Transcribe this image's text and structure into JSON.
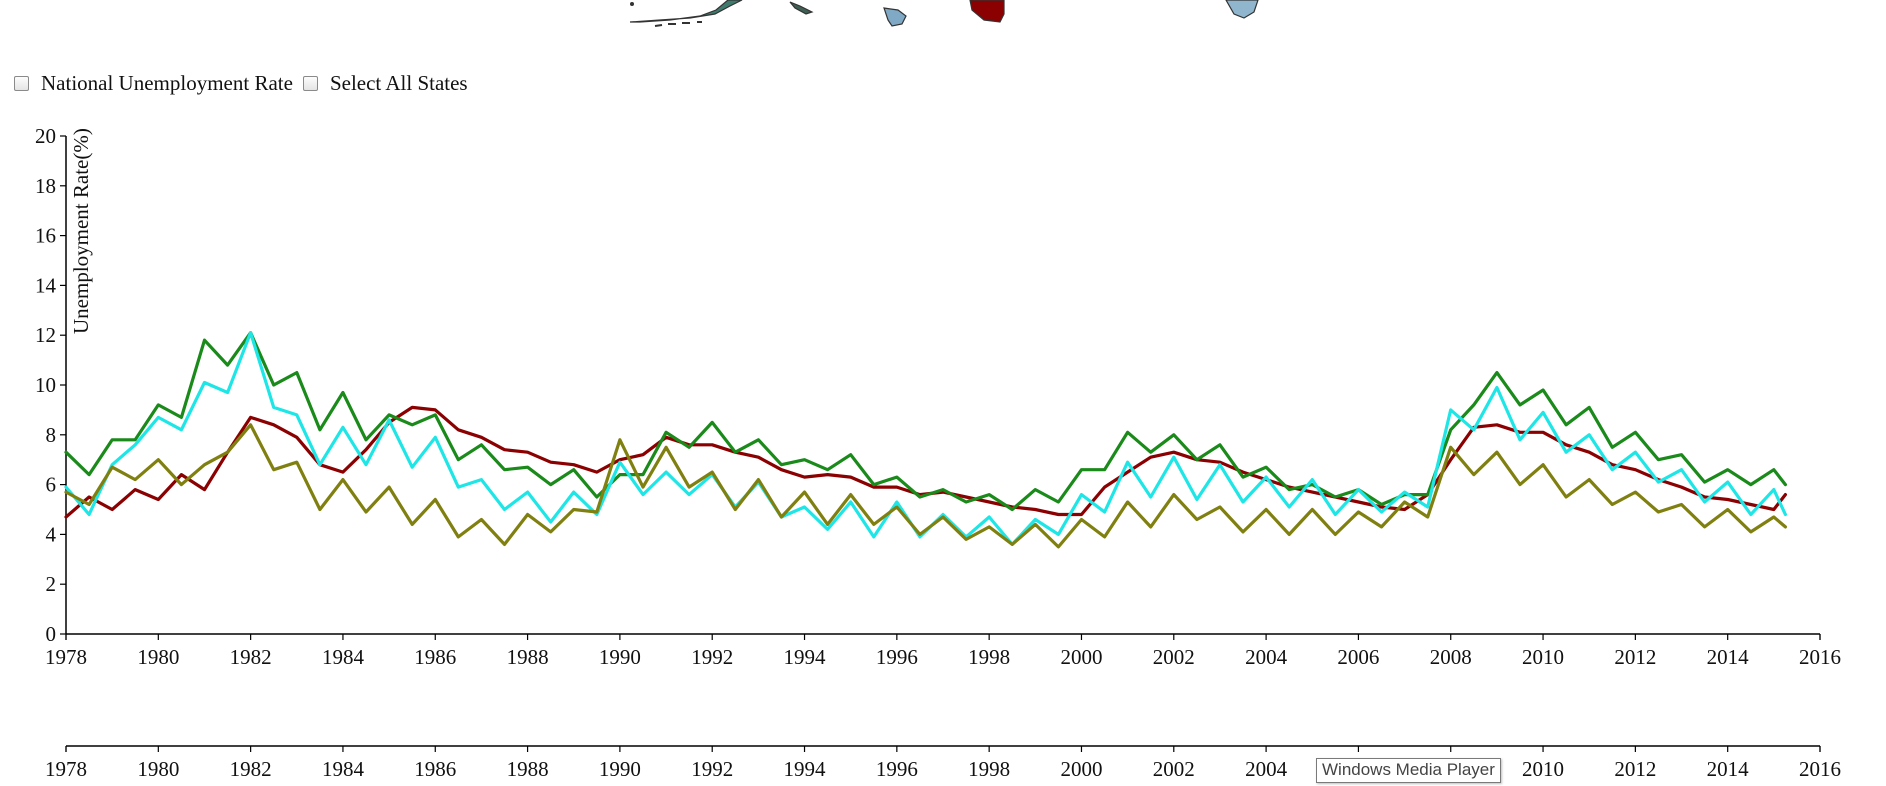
{
  "controls": {
    "national_label": "National Unemployment Rate",
    "all_states_label": "Select All States"
  },
  "tooltip": "Windows Media Player",
  "map_fragment_colors": [
    "#2f6e64",
    "#4a6e9a",
    "#8b0000",
    "#7fa9c4",
    "#3a3a3a"
  ],
  "chart_data": {
    "type": "line",
    "ylabel": "Unemployment Rate(%)",
    "xlabel": "",
    "xlim": [
      1978,
      2016
    ],
    "ylim": [
      0,
      20
    ],
    "y_ticks": [
      "0",
      "2",
      "4",
      "6",
      "8",
      "10",
      "12",
      "14",
      "16",
      "18",
      "20"
    ],
    "x_ticks": [
      "1978",
      "1980",
      "1982",
      "1984",
      "1986",
      "1988",
      "1990",
      "1992",
      "1994",
      "1996",
      "1998",
      "2000",
      "2002",
      "2004",
      "2006",
      "2008",
      "2010",
      "2012",
      "2014",
      "2016"
    ],
    "grid": false,
    "legend": "none",
    "series": [
      {
        "color": "#8b0000",
        "points": [
          [
            1978,
            4.7
          ],
          [
            1978.5,
            5.5
          ],
          [
            1979,
            5.0
          ],
          [
            1979.5,
            5.8
          ],
          [
            1980,
            5.4
          ],
          [
            1980.5,
            6.4
          ],
          [
            1981,
            5.8
          ],
          [
            1981.5,
            7.3
          ],
          [
            1982,
            8.7
          ],
          [
            1982.5,
            8.4
          ],
          [
            1983,
            7.9
          ],
          [
            1983.5,
            6.8
          ],
          [
            1984,
            6.5
          ],
          [
            1984.5,
            7.4
          ],
          [
            1985,
            8.5
          ],
          [
            1985.5,
            9.1
          ],
          [
            1986,
            9.0
          ],
          [
            1986.5,
            8.2
          ],
          [
            1987,
            7.9
          ],
          [
            1987.5,
            7.4
          ],
          [
            1988,
            7.3
          ],
          [
            1988.5,
            6.9
          ],
          [
            1989,
            6.8
          ],
          [
            1989.5,
            6.5
          ],
          [
            1990,
            7.0
          ],
          [
            1990.5,
            7.2
          ],
          [
            1991,
            7.9
          ],
          [
            1991.5,
            7.6
          ],
          [
            1992,
            7.6
          ],
          [
            1992.5,
            7.3
          ],
          [
            1993,
            7.1
          ],
          [
            1993.5,
            6.6
          ],
          [
            1994,
            6.3
          ],
          [
            1994.5,
            6.4
          ],
          [
            1995,
            6.3
          ],
          [
            1995.5,
            5.9
          ],
          [
            1996,
            5.9
          ],
          [
            1996.5,
            5.6
          ],
          [
            1997,
            5.7
          ],
          [
            1997.5,
            5.5
          ],
          [
            1998,
            5.3
          ],
          [
            1998.5,
            5.1
          ],
          [
            1999,
            5.0
          ],
          [
            1999.5,
            4.8
          ],
          [
            2000,
            4.8
          ],
          [
            2000.5,
            5.9
          ],
          [
            2001,
            6.5
          ],
          [
            2001.5,
            7.1
          ],
          [
            2002,
            7.3
          ],
          [
            2002.5,
            7.0
          ],
          [
            2003,
            6.9
          ],
          [
            2003.5,
            6.5
          ],
          [
            2004,
            6.2
          ],
          [
            2004.5,
            5.9
          ],
          [
            2005,
            5.7
          ],
          [
            2005.5,
            5.5
          ],
          [
            2006,
            5.3
          ],
          [
            2006.5,
            5.1
          ],
          [
            2007,
            5.0
          ],
          [
            2007.5,
            5.6
          ],
          [
            2008,
            7.0
          ],
          [
            2008.5,
            8.3
          ],
          [
            2009,
            8.4
          ],
          [
            2009.5,
            8.1
          ],
          [
            2010,
            8.1
          ],
          [
            2010.5,
            7.6
          ],
          [
            2011,
            7.3
          ],
          [
            2011.5,
            6.8
          ],
          [
            2012,
            6.6
          ],
          [
            2012.5,
            6.2
          ],
          [
            2013,
            5.9
          ],
          [
            2013.5,
            5.5
          ],
          [
            2014,
            5.4
          ],
          [
            2014.5,
            5.2
          ],
          [
            2015,
            5.0
          ],
          [
            2015.25,
            5.6
          ]
        ]
      },
      {
        "color": "#1a8a1a",
        "points": [
          [
            1978,
            7.3
          ],
          [
            1978.5,
            6.4
          ],
          [
            1979,
            7.8
          ],
          [
            1979.5,
            7.8
          ],
          [
            1980,
            9.2
          ],
          [
            1980.5,
            8.7
          ],
          [
            1981,
            11.8
          ],
          [
            1981.5,
            10.8
          ],
          [
            1982,
            12.1
          ],
          [
            1982.5,
            10.0
          ],
          [
            1983,
            10.5
          ],
          [
            1983.5,
            8.2
          ],
          [
            1984,
            9.7
          ],
          [
            1984.5,
            7.8
          ],
          [
            1985,
            8.8
          ],
          [
            1985.5,
            8.4
          ],
          [
            1986,
            8.8
          ],
          [
            1986.5,
            7.0
          ],
          [
            1987,
            7.6
          ],
          [
            1987.5,
            6.6
          ],
          [
            1988,
            6.7
          ],
          [
            1988.5,
            6.0
          ],
          [
            1989,
            6.6
          ],
          [
            1989.5,
            5.5
          ],
          [
            1990,
            6.4
          ],
          [
            1990.5,
            6.4
          ],
          [
            1991,
            8.1
          ],
          [
            1991.5,
            7.5
          ],
          [
            1992,
            8.5
          ],
          [
            1992.5,
            7.3
          ],
          [
            1993,
            7.8
          ],
          [
            1993.5,
            6.8
          ],
          [
            1994,
            7.0
          ],
          [
            1994.5,
            6.6
          ],
          [
            1995,
            7.2
          ],
          [
            1995.5,
            6.0
          ],
          [
            1996,
            6.3
          ],
          [
            1996.5,
            5.5
          ],
          [
            1997,
            5.8
          ],
          [
            1997.5,
            5.3
          ],
          [
            1998,
            5.6
          ],
          [
            1998.5,
            5.0
          ],
          [
            1999,
            5.8
          ],
          [
            1999.5,
            5.3
          ],
          [
            2000,
            6.6
          ],
          [
            2000.5,
            6.6
          ],
          [
            2001,
            8.1
          ],
          [
            2001.5,
            7.3
          ],
          [
            2002,
            8.0
          ],
          [
            2002.5,
            7.0
          ],
          [
            2003,
            7.6
          ],
          [
            2003.5,
            6.3
          ],
          [
            2004,
            6.7
          ],
          [
            2004.5,
            5.8
          ],
          [
            2005,
            6.0
          ],
          [
            2005.5,
            5.5
          ],
          [
            2006,
            5.8
          ],
          [
            2006.5,
            5.2
          ],
          [
            2007,
            5.6
          ],
          [
            2007.5,
            5.6
          ],
          [
            2008,
            8.2
          ],
          [
            2008.5,
            9.2
          ],
          [
            2009,
            10.5
          ],
          [
            2009.5,
            9.2
          ],
          [
            2010,
            9.8
          ],
          [
            2010.5,
            8.4
          ],
          [
            2011,
            9.1
          ],
          [
            2011.5,
            7.5
          ],
          [
            2012,
            8.1
          ],
          [
            2012.5,
            7.0
          ],
          [
            2013,
            7.2
          ],
          [
            2013.5,
            6.1
          ],
          [
            2014,
            6.6
          ],
          [
            2014.5,
            6.0
          ],
          [
            2015,
            6.6
          ],
          [
            2015.25,
            6.0
          ]
        ]
      },
      {
        "color": "#1ee6e6",
        "points": [
          [
            1978,
            5.9
          ],
          [
            1978.5,
            4.8
          ],
          [
            1979,
            6.8
          ],
          [
            1979.5,
            7.6
          ],
          [
            1980,
            8.7
          ],
          [
            1980.5,
            8.2
          ],
          [
            1981,
            10.1
          ],
          [
            1981.5,
            9.7
          ],
          [
            1982,
            12.1
          ],
          [
            1982.5,
            9.1
          ],
          [
            1983,
            8.8
          ],
          [
            1983.5,
            6.8
          ],
          [
            1984,
            8.3
          ],
          [
            1984.5,
            6.8
          ],
          [
            1985,
            8.6
          ],
          [
            1985.5,
            6.7
          ],
          [
            1986,
            7.9
          ],
          [
            1986.5,
            5.9
          ],
          [
            1987,
            6.2
          ],
          [
            1987.5,
            5.0
          ],
          [
            1988,
            5.7
          ],
          [
            1988.5,
            4.5
          ],
          [
            1989,
            5.7
          ],
          [
            1989.5,
            4.8
          ],
          [
            1990,
            6.9
          ],
          [
            1990.5,
            5.6
          ],
          [
            1991,
            6.5
          ],
          [
            1991.5,
            5.6
          ],
          [
            1992,
            6.4
          ],
          [
            1992.5,
            5.1
          ],
          [
            1993,
            6.1
          ],
          [
            1993.5,
            4.7
          ],
          [
            1994,
            5.1
          ],
          [
            1994.5,
            4.2
          ],
          [
            1995,
            5.3
          ],
          [
            1995.5,
            3.9
          ],
          [
            1996,
            5.3
          ],
          [
            1996.5,
            3.9
          ],
          [
            1997,
            4.8
          ],
          [
            1997.5,
            3.9
          ],
          [
            1998,
            4.7
          ],
          [
            1998.5,
            3.6
          ],
          [
            1999,
            4.6
          ],
          [
            1999.5,
            4.0
          ],
          [
            2000,
            5.6
          ],
          [
            2000.5,
            4.9
          ],
          [
            2001,
            6.9
          ],
          [
            2001.5,
            5.5
          ],
          [
            2002,
            7.1
          ],
          [
            2002.5,
            5.4
          ],
          [
            2003,
            6.8
          ],
          [
            2003.5,
            5.3
          ],
          [
            2004,
            6.3
          ],
          [
            2004.5,
            5.1
          ],
          [
            2005,
            6.2
          ],
          [
            2005.5,
            4.8
          ],
          [
            2006,
            5.8
          ],
          [
            2006.5,
            4.9
          ],
          [
            2007,
            5.7
          ],
          [
            2007.5,
            5.1
          ],
          [
            2008,
            9.0
          ],
          [
            2008.5,
            8.2
          ],
          [
            2009,
            9.9
          ],
          [
            2009.5,
            7.8
          ],
          [
            2010,
            8.9
          ],
          [
            2010.5,
            7.3
          ],
          [
            2011,
            8.0
          ],
          [
            2011.5,
            6.6
          ],
          [
            2012,
            7.3
          ],
          [
            2012.5,
            6.1
          ],
          [
            2013,
            6.6
          ],
          [
            2013.5,
            5.3
          ],
          [
            2014,
            6.1
          ],
          [
            2014.5,
            4.8
          ],
          [
            2015,
            5.8
          ],
          [
            2015.25,
            4.8
          ]
        ]
      },
      {
        "color": "#808010",
        "points": [
          [
            1978,
            5.7
          ],
          [
            1978.5,
            5.2
          ],
          [
            1979,
            6.7
          ],
          [
            1979.5,
            6.2
          ],
          [
            1980,
            7.0
          ],
          [
            1980.5,
            6.0
          ],
          [
            1981,
            6.8
          ],
          [
            1981.5,
            7.3
          ],
          [
            1982,
            8.4
          ],
          [
            1982.5,
            6.6
          ],
          [
            1983,
            6.9
          ],
          [
            1983.5,
            5.0
          ],
          [
            1984,
            6.2
          ],
          [
            1984.5,
            4.9
          ],
          [
            1985,
            5.9
          ],
          [
            1985.5,
            4.4
          ],
          [
            1986,
            5.4
          ],
          [
            1986.5,
            3.9
          ],
          [
            1987,
            4.6
          ],
          [
            1987.5,
            3.6
          ],
          [
            1988,
            4.8
          ],
          [
            1988.5,
            4.1
          ],
          [
            1989,
            5.0
          ],
          [
            1989.5,
            4.9
          ],
          [
            1990,
            7.8
          ],
          [
            1990.5,
            5.9
          ],
          [
            1991,
            7.5
          ],
          [
            1991.5,
            5.9
          ],
          [
            1992,
            6.5
          ],
          [
            1992.5,
            5.0
          ],
          [
            1993,
            6.2
          ],
          [
            1993.5,
            4.7
          ],
          [
            1994,
            5.7
          ],
          [
            1994.5,
            4.4
          ],
          [
            1995,
            5.6
          ],
          [
            1995.5,
            4.4
          ],
          [
            1996,
            5.1
          ],
          [
            1996.5,
            4.0
          ],
          [
            1997,
            4.7
          ],
          [
            1997.5,
            3.8
          ],
          [
            1998,
            4.3
          ],
          [
            1998.5,
            3.6
          ],
          [
            1999,
            4.4
          ],
          [
            1999.5,
            3.5
          ],
          [
            2000,
            4.6
          ],
          [
            2000.5,
            3.9
          ],
          [
            2001,
            5.3
          ],
          [
            2001.5,
            4.3
          ],
          [
            2002,
            5.6
          ],
          [
            2002.5,
            4.6
          ],
          [
            2003,
            5.1
          ],
          [
            2003.5,
            4.1
          ],
          [
            2004,
            5.0
          ],
          [
            2004.5,
            4.0
          ],
          [
            2005,
            5.0
          ],
          [
            2005.5,
            4.0
          ],
          [
            2006,
            4.9
          ],
          [
            2006.5,
            4.3
          ],
          [
            2007,
            5.3
          ],
          [
            2007.5,
            4.7
          ],
          [
            2008,
            7.5
          ],
          [
            2008.5,
            6.4
          ],
          [
            2009,
            7.3
          ],
          [
            2009.5,
            6.0
          ],
          [
            2010,
            6.8
          ],
          [
            2010.5,
            5.5
          ],
          [
            2011,
            6.2
          ],
          [
            2011.5,
            5.2
          ],
          [
            2012,
            5.7
          ],
          [
            2012.5,
            4.9
          ],
          [
            2013,
            5.2
          ],
          [
            2013.5,
            4.3
          ],
          [
            2014,
            5.0
          ],
          [
            2014.5,
            4.1
          ],
          [
            2015,
            4.7
          ],
          [
            2015.25,
            4.3
          ]
        ]
      }
    ]
  }
}
